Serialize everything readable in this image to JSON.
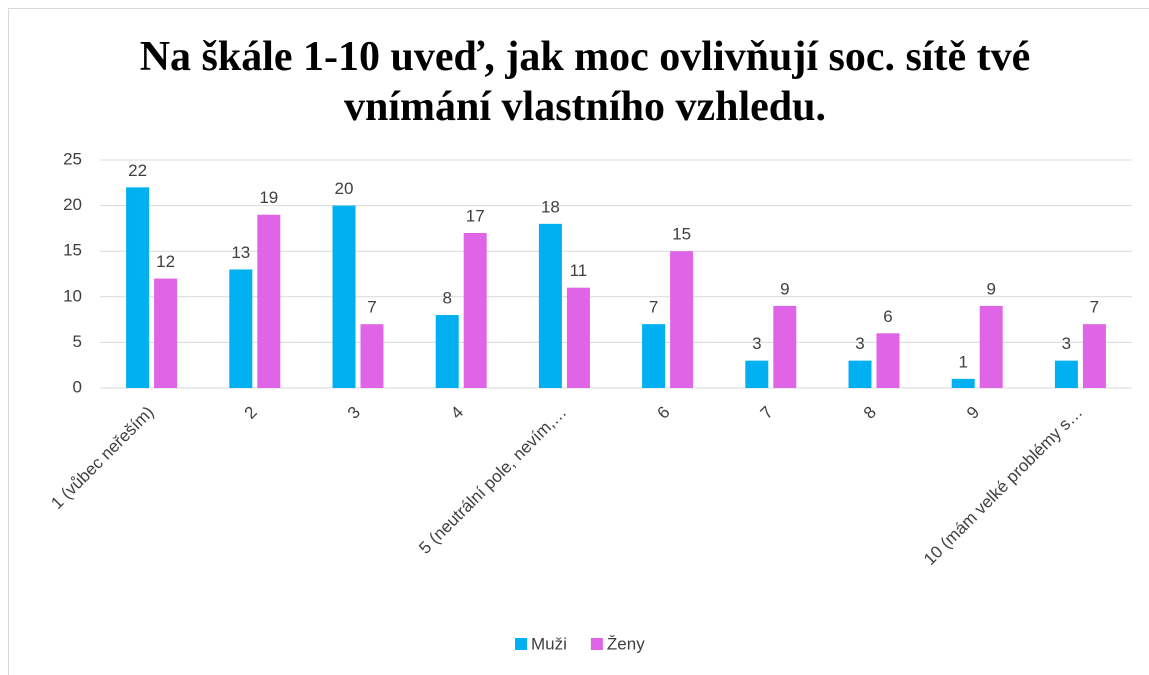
{
  "chart_data": {
    "type": "bar",
    "title": "Na škále 1-10 uveď, jak moc ovlivňují soc. sítě tvé vnímání vlastního vzhledu.",
    "categories": [
      "1 (vůbec neřeším)",
      "2",
      "3",
      "4",
      "5 (neutrální pole, nevím,…",
      "6",
      "7",
      "8",
      "9",
      "10 (mám velké problémy s…"
    ],
    "series": [
      {
        "name": "Muži",
        "color": "#00b0f0",
        "values": [
          22,
          13,
          20,
          8,
          18,
          7,
          3,
          3,
          1,
          3
        ]
      },
      {
        "name": "Ženy",
        "color": "#e065e6",
        "values": [
          12,
          19,
          7,
          17,
          11,
          15,
          9,
          6,
          9,
          7
        ]
      }
    ],
    "ylim": [
      0,
      25
    ],
    "yticks": [
      0,
      5,
      10,
      15,
      20,
      25
    ],
    "grid": true,
    "legend": "bottom"
  }
}
